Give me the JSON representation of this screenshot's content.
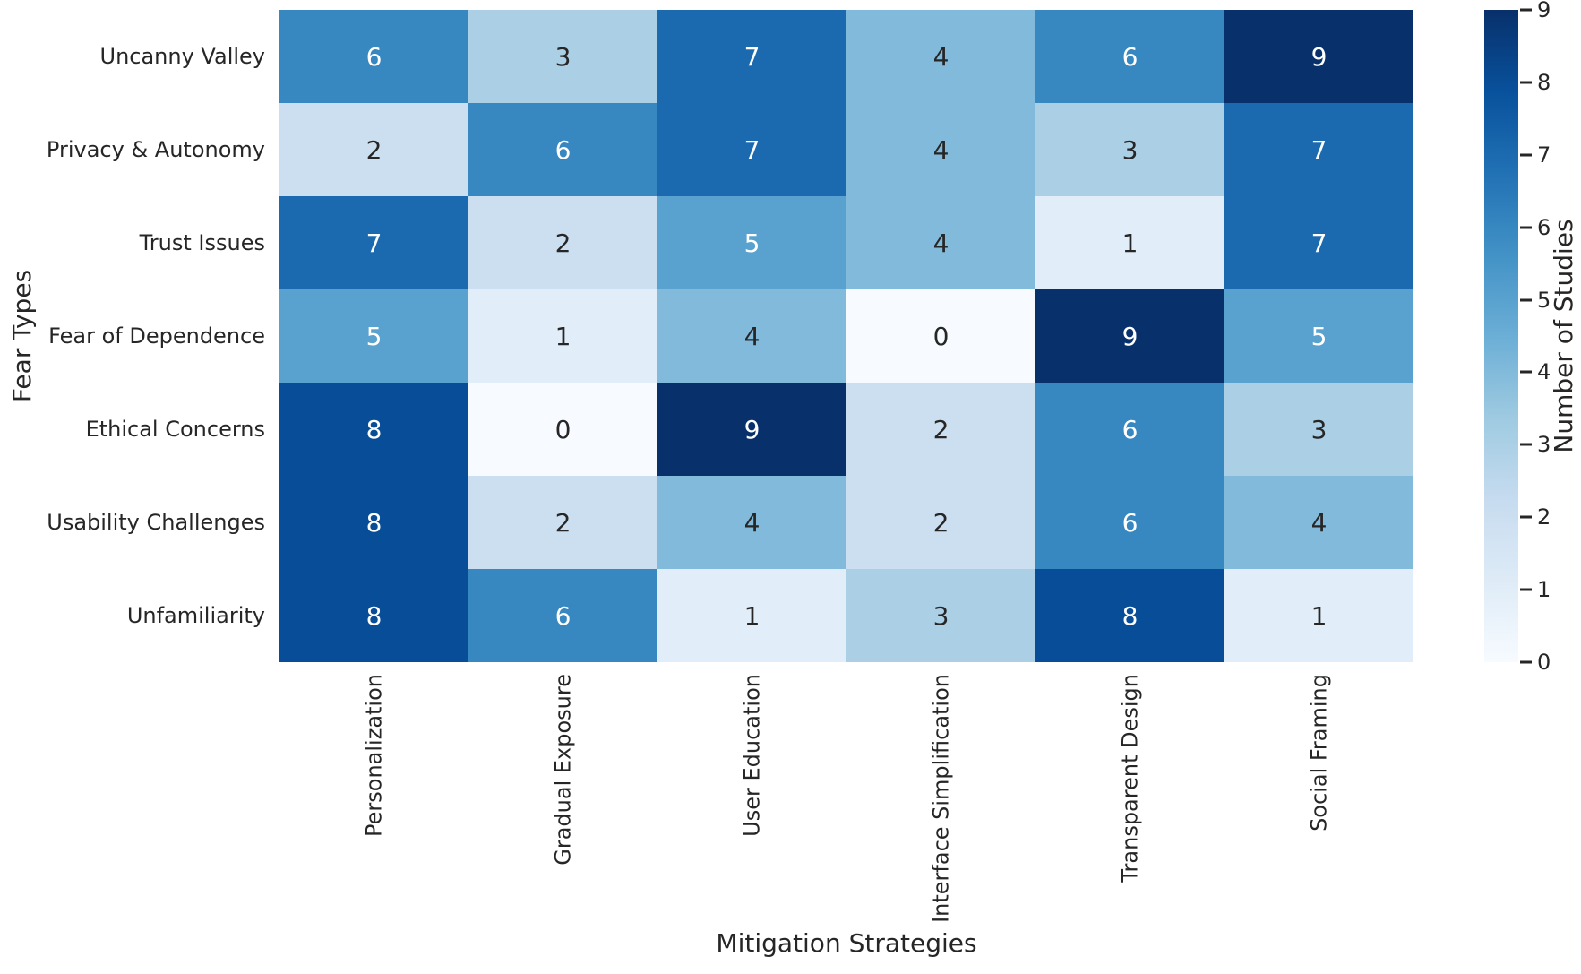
{
  "figure": {
    "background": "#ffffff",
    "text_color": "#262626"
  },
  "chart_data": {
    "type": "heatmap",
    "title": "",
    "xlabel": "Mitigation Strategies",
    "ylabel": "Fear Types",
    "colorbar_label": "Number of Studies",
    "rows": [
      "Uncanny Valley",
      "Privacy & Autonomy",
      "Trust Issues",
      "Fear of Dependence",
      "Ethical Concerns",
      "Usability Challenges",
      "Unfamiliarity"
    ],
    "columns": [
      "Personalization",
      "Gradual Exposure",
      "User Education",
      "Interface Simplification",
      "Transparent Design",
      "Social Framing"
    ],
    "values": [
      [
        6,
        3,
        7,
        4,
        6,
        9
      ],
      [
        2,
        6,
        7,
        4,
        3,
        7
      ],
      [
        7,
        2,
        5,
        4,
        1,
        7
      ],
      [
        5,
        1,
        4,
        0,
        9,
        5
      ],
      [
        8,
        0,
        9,
        2,
        6,
        3
      ],
      [
        8,
        2,
        4,
        2,
        6,
        4
      ],
      [
        8,
        6,
        1,
        3,
        8,
        1
      ]
    ],
    "vmin": 0,
    "vmax": 9,
    "colormap_name": "Blues",
    "value_palette": [
      "#f7fbff",
      "#e1edf8",
      "#cbdff1",
      "#abd0e6",
      "#82badb",
      "#59a2cf",
      "#3787c0",
      "#1b6aaf",
      "#084d97",
      "#08306b"
    ],
    "colormap_anchors": [
      {
        "pos": 0.0,
        "color": "#f7fbff"
      },
      {
        "pos": 0.125,
        "color": "#deebf7"
      },
      {
        "pos": 0.25,
        "color": "#c6dbef"
      },
      {
        "pos": 0.375,
        "color": "#9ecae1"
      },
      {
        "pos": 0.5,
        "color": "#6baed6"
      },
      {
        "pos": 0.625,
        "color": "#4292c6"
      },
      {
        "pos": 0.75,
        "color": "#2171b5"
      },
      {
        "pos": 0.875,
        "color": "#08519c"
      },
      {
        "pos": 1.0,
        "color": "#08306b"
      }
    ],
    "colorbar_ticks": [
      0,
      1,
      2,
      3,
      4,
      5,
      6,
      7,
      8,
      9
    ],
    "annotation_light_color": "#ffffff",
    "annotation_dark_color": "#262626",
    "annotation_light_threshold": 5,
    "legend_position": "right",
    "grid": "off"
  }
}
